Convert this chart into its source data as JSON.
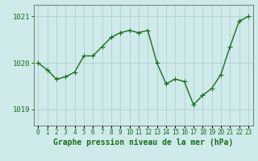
{
  "x": [
    0,
    1,
    2,
    3,
    4,
    5,
    6,
    7,
    8,
    9,
    10,
    11,
    12,
    13,
    14,
    15,
    16,
    17,
    18,
    19,
    20,
    21,
    22,
    23
  ],
  "y": [
    1020.0,
    1019.85,
    1019.65,
    1019.7,
    1019.8,
    1020.15,
    1020.15,
    1020.35,
    1020.55,
    1020.65,
    1020.7,
    1020.65,
    1020.7,
    1020.0,
    1019.55,
    1019.65,
    1019.6,
    1019.1,
    1019.3,
    1019.45,
    1019.75,
    1020.35,
    1020.9,
    1021.0
  ],
  "line_color": "#1a6e1a",
  "marker": "+",
  "marker_size": 4,
  "marker_color": "#1a6e1a",
  "background_color": "#ceeaea",
  "grid_color": "#b0c8c8",
  "xlabel": "Graphe pression niveau de la mer (hPa)",
  "xlabel_color": "#1a6e1a",
  "ylabel_ticks": [
    1019,
    1020,
    1021
  ],
  "ylim": [
    1018.65,
    1021.25
  ],
  "xlim": [
    -0.5,
    23.5
  ],
  "xtick_labels": [
    "0",
    "1",
    "2",
    "3",
    "4",
    "5",
    "6",
    "7",
    "8",
    "9",
    "10",
    "11",
    "12",
    "13",
    "14",
    "15",
    "16",
    "17",
    "18",
    "19",
    "20",
    "21",
    "22",
    "23"
  ],
  "tick_color": "#1a6e1a",
  "spine_color": "#666666",
  "line_width": 1.0,
  "xlabel_fontsize": 7,
  "tick_fontsize": 5.5,
  "ytick_fontsize": 6.5
}
